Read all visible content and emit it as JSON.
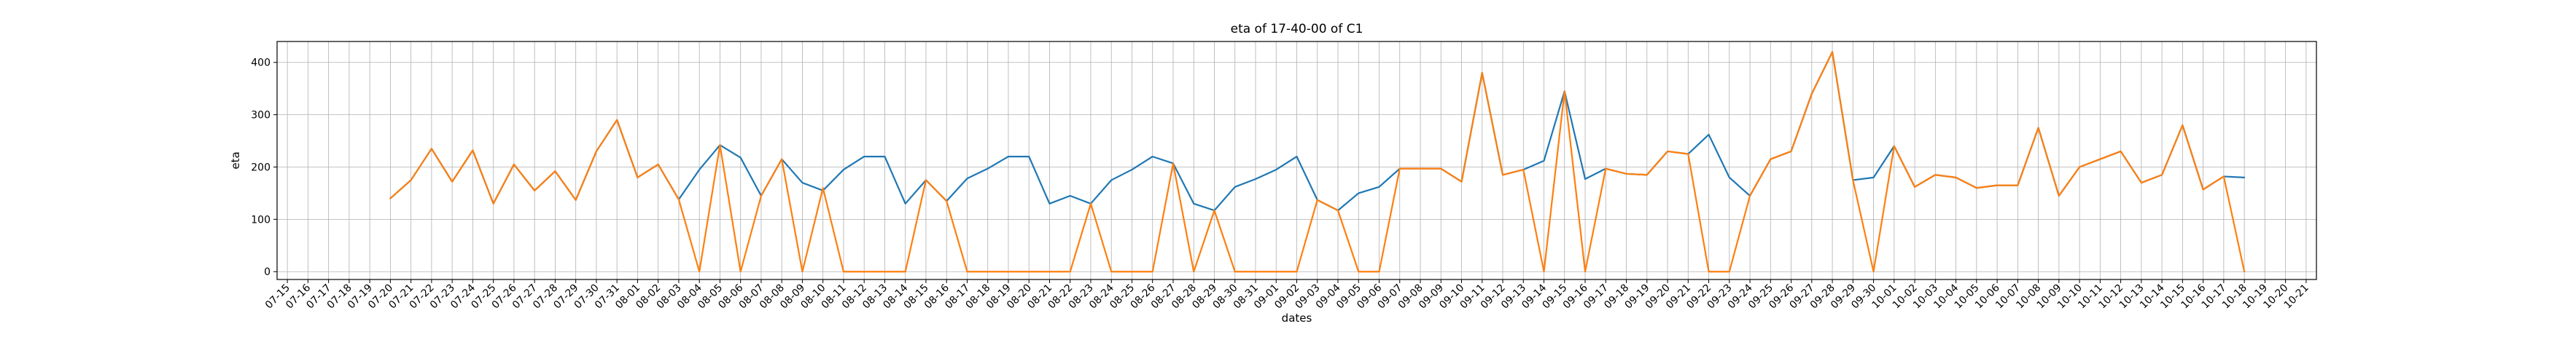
{
  "chart_data": {
    "type": "line",
    "title": "eta of 17-40-00 of C1",
    "xlabel": "dates",
    "ylabel": "eta",
    "ylim": [
      -15,
      440
    ],
    "yticks": [
      0,
      100,
      200,
      300,
      400
    ],
    "grid": true,
    "x": [
      "07-15",
      "07-16",
      "07-17",
      "07-18",
      "07-19",
      "07-20",
      "07-21",
      "07-22",
      "07-23",
      "07-24",
      "07-25",
      "07-26",
      "07-27",
      "07-28",
      "07-29",
      "07-30",
      "07-31",
      "08-01",
      "08-02",
      "08-03",
      "08-04",
      "08-05",
      "08-06",
      "08-07",
      "08-08",
      "08-09",
      "08-10",
      "08-11",
      "08-12",
      "08-13",
      "08-14",
      "08-15",
      "08-16",
      "08-17",
      "08-18",
      "08-19",
      "08-20",
      "08-21",
      "08-22",
      "08-23",
      "08-24",
      "08-25",
      "08-26",
      "08-27",
      "08-28",
      "08-29",
      "08-30",
      "08-31",
      "09-01",
      "09-02",
      "09-03",
      "09-04",
      "09-05",
      "09-06",
      "09-07",
      "09-08",
      "09-09",
      "09-10",
      "09-11",
      "09-12",
      "09-13",
      "09-14",
      "09-15",
      "09-16",
      "09-17",
      "09-18",
      "09-19",
      "09-20",
      "09-21",
      "09-22",
      "09-23",
      "09-24",
      "09-25",
      "09-26",
      "09-27",
      "09-28",
      "09-29",
      "09-30",
      "10-01",
      "10-02",
      "10-03",
      "10-04",
      "10-05",
      "10-06",
      "10-07",
      "10-08",
      "10-09",
      "10-10",
      "10-11",
      "10-12",
      "10-13",
      "10-14",
      "10-15",
      "10-16",
      "10-17",
      "10-18",
      "10-19",
      "10-20",
      "10-21"
    ],
    "series": [
      {
        "color": "#1f77b4",
        "values": [
          null,
          null,
          null,
          null,
          null,
          140,
          175,
          235,
          172,
          232,
          130,
          205,
          155,
          192,
          137,
          230,
          290,
          180,
          205,
          138,
          195,
          242,
          218,
          145,
          215,
          170,
          155,
          195,
          220,
          220,
          130,
          175,
          135,
          178,
          197,
          220,
          220,
          130,
          145,
          130,
          175,
          195,
          220,
          207,
          130,
          117,
          162,
          177,
          195,
          220,
          137,
          117,
          150,
          162,
          197,
          197,
          197,
          172,
          380,
          185,
          195,
          212,
          345,
          177,
          197,
          187,
          185,
          230,
          225,
          262,
          180,
          145,
          215,
          230,
          340,
          420,
          175,
          180,
          240,
          162,
          185,
          180,
          160,
          165,
          165,
          275,
          145,
          200,
          215,
          230,
          170,
          185,
          280,
          157,
          182,
          180,
          null,
          null,
          null
        ]
      },
      {
        "color": "#ff7f0e",
        "values": [
          null,
          null,
          null,
          null,
          null,
          140,
          175,
          235,
          172,
          232,
          130,
          205,
          155,
          192,
          137,
          230,
          290,
          180,
          205,
          138,
          0,
          242,
          0,
          145,
          215,
          0,
          160,
          0,
          0,
          0,
          0,
          175,
          135,
          0,
          0,
          0,
          0,
          0,
          0,
          130,
          0,
          0,
          0,
          207,
          0,
          117,
          0,
          0,
          0,
          0,
          137,
          117,
          0,
          0,
          197,
          197,
          197,
          172,
          380,
          185,
          195,
          0,
          345,
          0,
          197,
          187,
          185,
          230,
          225,
          0,
          0,
          145,
          215,
          230,
          340,
          420,
          175,
          0,
          240,
          162,
          185,
          180,
          160,
          165,
          165,
          275,
          145,
          200,
          215,
          230,
          170,
          185,
          280,
          157,
          182,
          0,
          null,
          null,
          null
        ]
      }
    ]
  }
}
